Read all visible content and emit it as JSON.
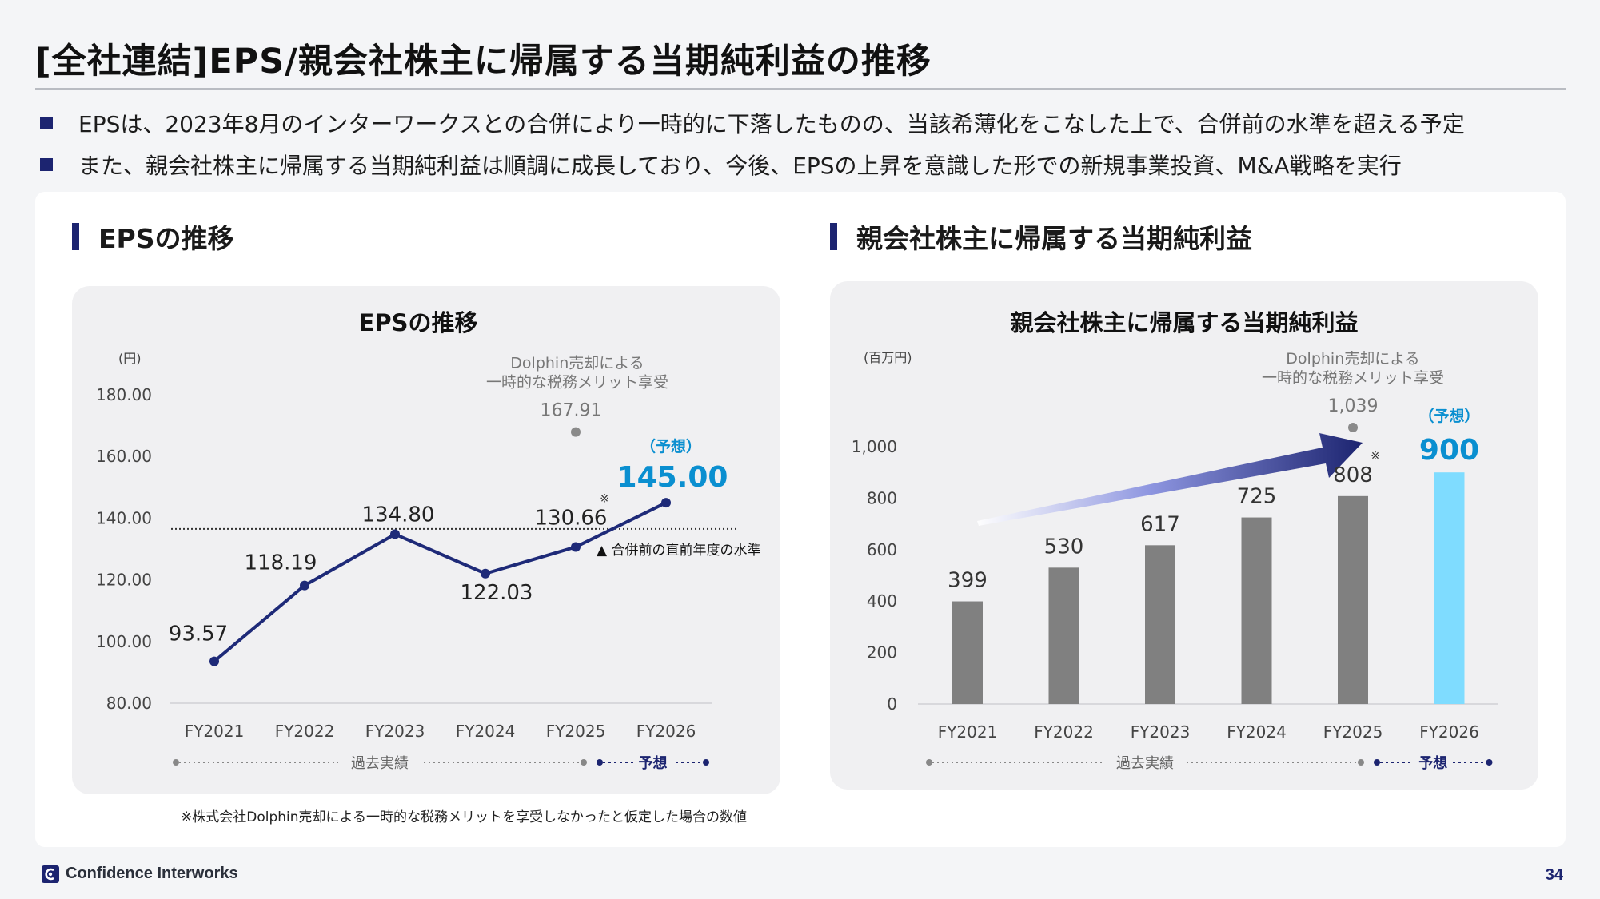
{
  "page": {
    "title": "[全社連結]EPS/親会社株主に帰属する当期純利益の推移",
    "bullets": [
      "EPSは、2023年8月のインターワークスとの合併により一時的に下落したものの、当該希薄化をこなした上で、合併前の水準を超える予定",
      "また、親会社株主に帰属する当期純利益は順調に成長しており、今後、EPSの上昇を意識した形での新規事業投資、M&A戦略を実行"
    ],
    "footnote": "※株式会社Dolphin売却による一時的な税務メリットを享受しなかったと仮定した場合の数値",
    "company": "Confidence Interworks",
    "page_number": "34",
    "accent_color": "#1c2470",
    "forecast_color": "#0a8fd0",
    "forecast_bar_color": "#7fdcff",
    "bar_color": "#808080"
  },
  "sections": {
    "left_heading": "EPSの推移",
    "right_heading": "親会社株主に帰属する当期純利益"
  },
  "chart_data": [
    {
      "type": "line",
      "title": "EPSの推移",
      "ylabel": "(円)",
      "ylim": [
        80,
        180
      ],
      "yticks": [
        "180.00",
        "160.00",
        "140.00",
        "120.00",
        "100.00",
        "80.00"
      ],
      "categories": [
        "FY2021",
        "FY2022",
        "FY2023",
        "FY2024",
        "FY2025",
        "FY2026"
      ],
      "series": [
        {
          "values": [
            93.57,
            118.19,
            134.8,
            122.03,
            130.66,
            145.0
          ],
          "labels": [
            "93.57",
            "118.19",
            "134.80",
            "122.03",
            "130.66",
            "145.00"
          ]
        }
      ],
      "alternate_point": {
        "category": "FY2025",
        "value": 167.91,
        "label": "167.91",
        "note": [
          "Dolphin売却による",
          "一時的な税務メリット享受"
        ]
      },
      "reference_line": {
        "value": 136.5,
        "label": "▲ 合併前の直前年度の水準"
      },
      "note_mark": "※",
      "forecast_label": "（予想）",
      "period_labels": {
        "actual": "過去実績",
        "forecast": "予想"
      }
    },
    {
      "type": "bar",
      "title": "親会社株主に帰属する当期純利益",
      "ylabel": "(百万円)",
      "ylim": [
        0,
        1000
      ],
      "yticks": [
        "1,000",
        "800",
        "600",
        "400",
        "200",
        "0"
      ],
      "categories": [
        "FY2021",
        "FY2022",
        "FY2023",
        "FY2024",
        "FY2025",
        "FY2026"
      ],
      "series": [
        {
          "values": [
            399,
            530,
            617,
            725,
            808,
            900
          ],
          "labels": [
            "399",
            "530",
            "617",
            "725",
            "808",
            "900"
          ]
        }
      ],
      "alternate_point": {
        "category": "FY2025",
        "value": 1039,
        "label": "1,039",
        "note": [
          "Dolphin売却による",
          "一時的な税務メリット享受"
        ]
      },
      "note_mark": "※",
      "forecast_label": "（予想）",
      "period_labels": {
        "actual": "過去実績",
        "forecast": "予想"
      }
    }
  ]
}
